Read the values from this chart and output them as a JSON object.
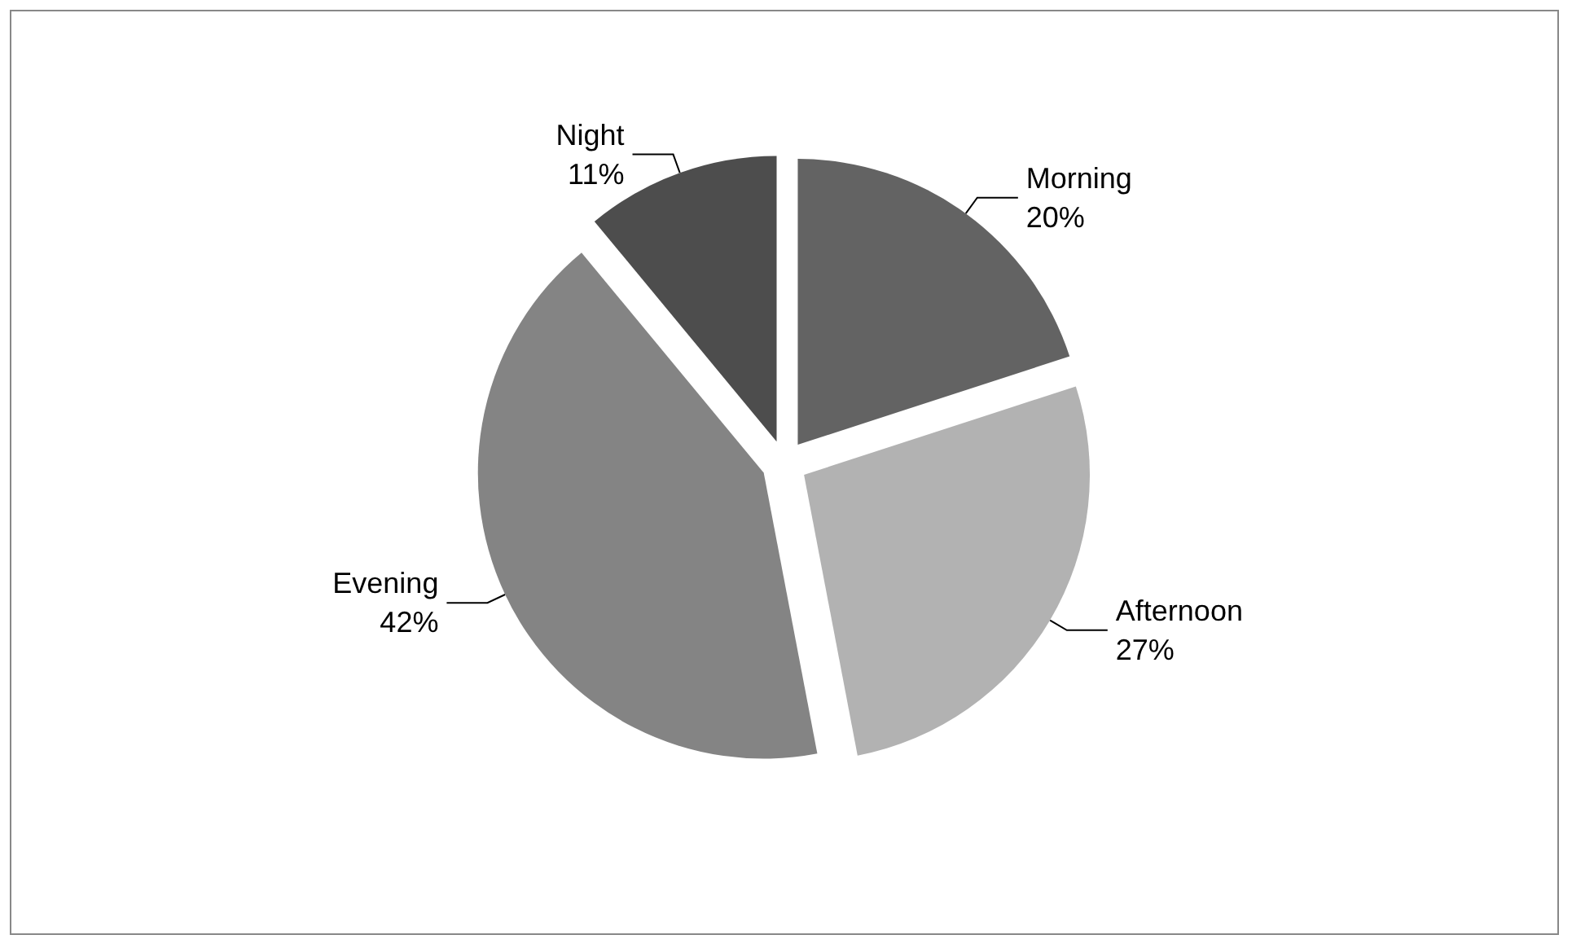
{
  "chart_data": {
    "type": "pie",
    "categories": [
      "Morning",
      "Afternoon",
      "Evening",
      "Night"
    ],
    "values": [
      20,
      27,
      42,
      11
    ],
    "colors": [
      "#636363",
      "#b2b2b2",
      "#848484",
      "#4d4d4d"
    ],
    "value_labels": [
      "20%",
      "27%",
      "42%",
      "11%"
    ],
    "legend": false
  }
}
